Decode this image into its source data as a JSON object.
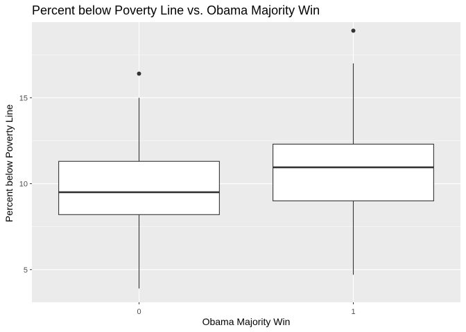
{
  "chart_data": {
    "type": "boxplot",
    "title": "Percent below Poverty Line vs. Obama Majority Win",
    "xlabel": "Obama Majority Win",
    "ylabel": "Percent below Poverty Line",
    "categories": [
      "0",
      "1"
    ],
    "ylim": [
      3.1,
      19.4
    ],
    "yticks": [
      5,
      10,
      15
    ],
    "grid": true,
    "boxes": [
      {
        "category": "0",
        "whisker_low": 3.9,
        "q1": 8.2,
        "median": 9.5,
        "q3": 11.3,
        "whisker_high": 15.0,
        "outliers": [
          16.4
        ]
      },
      {
        "category": "1",
        "whisker_low": 4.7,
        "q1": 9.0,
        "median": 10.95,
        "q3": 12.3,
        "whisker_high": 17.0,
        "outliers": [
          18.9
        ]
      }
    ],
    "colors": {
      "panel_background": "#ebebeb",
      "grid_major": "#ffffff",
      "box_fill": "#ffffff",
      "box_line": "#333333",
      "outlier": "#333333",
      "tick_label": "#4d4d4d"
    }
  }
}
